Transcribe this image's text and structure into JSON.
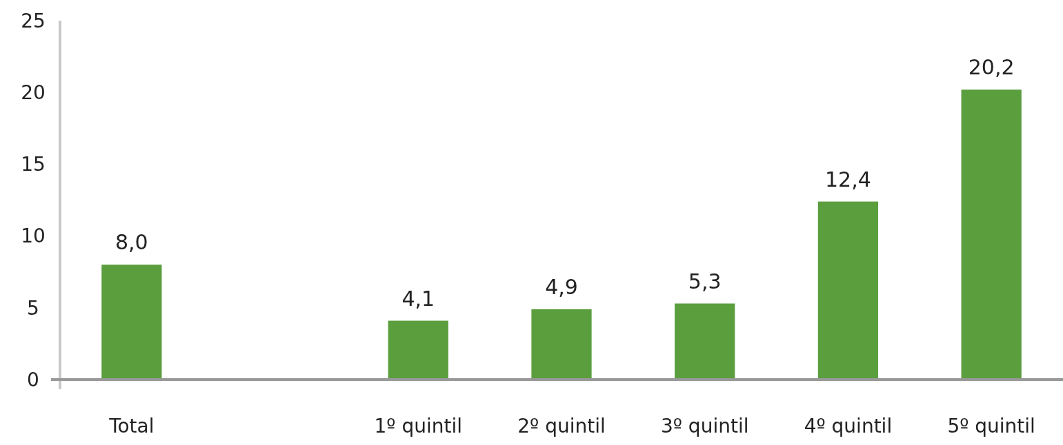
{
  "chart_data": {
    "type": "bar",
    "categories": [
      "Total",
      null,
      "1º quintil",
      "2º quintil",
      "3º quintil",
      "4º quintil",
      "5º quintil"
    ],
    "values": [
      8.0,
      null,
      4.1,
      4.9,
      5.3,
      12.4,
      20.2
    ],
    "value_labels": [
      "8,0",
      null,
      "4,1",
      "4,9",
      "5,3",
      "12,4",
      "20,2"
    ],
    "color": "#5a9e3e",
    "ylim": [
      0,
      25
    ],
    "yticks": [
      0,
      5,
      10,
      15,
      20,
      25
    ]
  }
}
